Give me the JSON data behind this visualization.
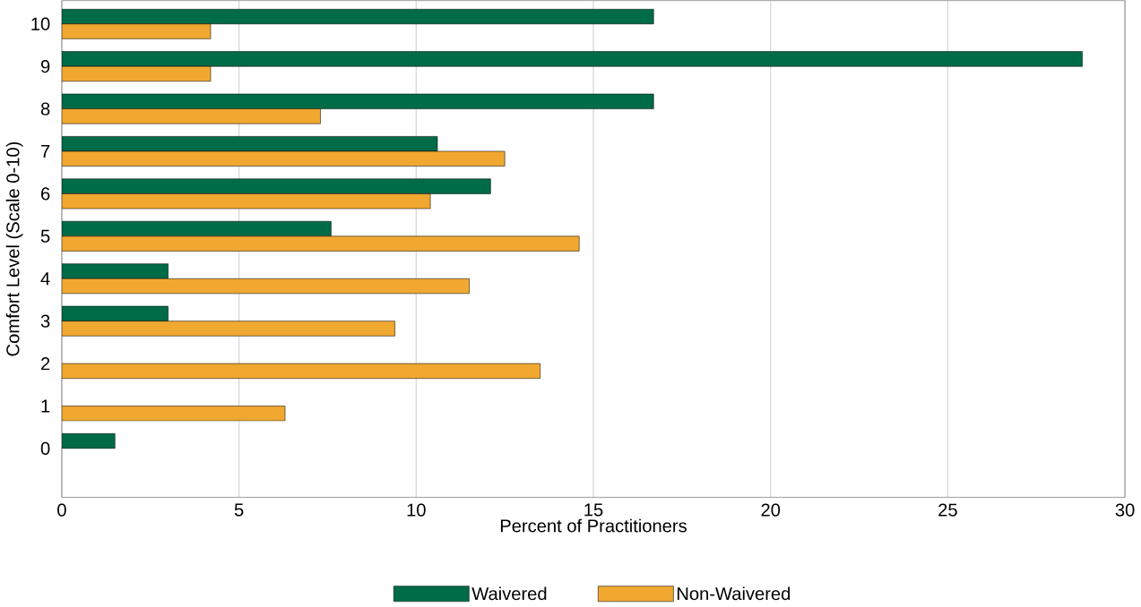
{
  "chart_data": {
    "type": "bar",
    "orientation": "horizontal",
    "xlabel": "Percent of Practitioners",
    "ylabel": "Comfort Level (Scale 0-10)",
    "categories": [
      "10",
      "9",
      "8",
      "7",
      "6",
      "5",
      "4",
      "3",
      "2",
      "1",
      "0"
    ],
    "series": [
      {
        "name": "Waivered",
        "color": "#006b47",
        "values": [
          16.7,
          28.8,
          16.7,
          10.6,
          12.1,
          7.6,
          3.0,
          3.0,
          null,
          null,
          1.5
        ]
      },
      {
        "name": "Non-Waivered",
        "color": "#f0a830",
        "values": [
          4.2,
          4.2,
          7.3,
          12.5,
          10.4,
          14.6,
          11.5,
          9.4,
          13.5,
          6.3,
          null
        ]
      }
    ],
    "xlim": [
      0,
      30
    ],
    "xticks": [
      0,
      5,
      10,
      15,
      20,
      25,
      30
    ],
    "grid": "x",
    "legend": "bottom"
  }
}
